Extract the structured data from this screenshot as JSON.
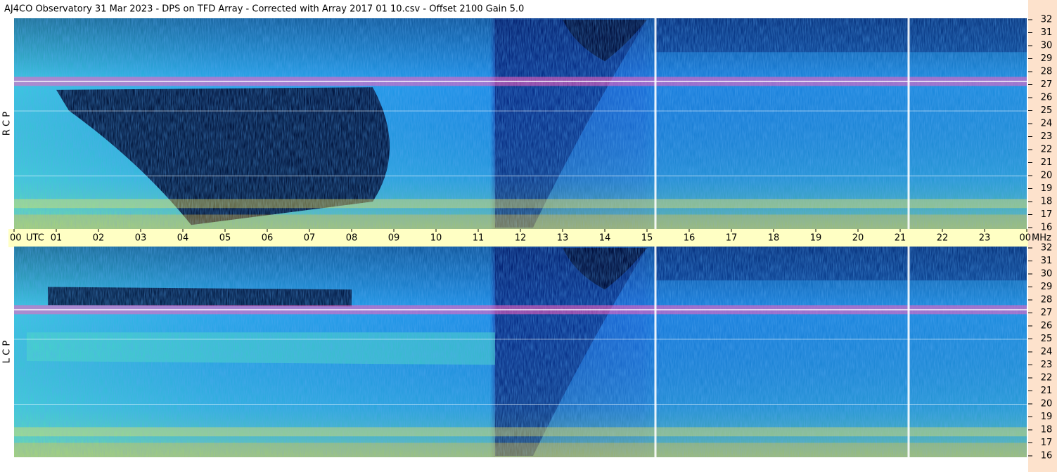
{
  "chart_data": {
    "type": "spectrogram",
    "title": "AJ4CO Observatory  31 Mar 2023  -  DPS on TFD Array  -  Corrected with Array 2017 01 10.csv  -  Offset 2100  Gain 5.0",
    "x_label": "UTC",
    "y_label": "MHz",
    "xlim": [
      0,
      24
    ],
    "xticks": [
      {
        "value": 0,
        "label": "00"
      },
      {
        "value": 1,
        "label": "01"
      },
      {
        "value": 2,
        "label": "02"
      },
      {
        "value": 3,
        "label": "03"
      },
      {
        "value": 4,
        "label": "04"
      },
      {
        "value": 5,
        "label": "05"
      },
      {
        "value": 6,
        "label": "06"
      },
      {
        "value": 7,
        "label": "07"
      },
      {
        "value": 8,
        "label": "08"
      },
      {
        "value": 9,
        "label": "09"
      },
      {
        "value": 10,
        "label": "10"
      },
      {
        "value": 11,
        "label": "11"
      },
      {
        "value": 12,
        "label": "12"
      },
      {
        "value": 13,
        "label": "13"
      },
      {
        "value": 14,
        "label": "14"
      },
      {
        "value": 15,
        "label": "15"
      },
      {
        "value": 16,
        "label": "16"
      },
      {
        "value": 17,
        "label": "17"
      },
      {
        "value": 18,
        "label": "18"
      },
      {
        "value": 19,
        "label": "19"
      },
      {
        "value": 20,
        "label": "20"
      },
      {
        "value": 21,
        "label": "21"
      },
      {
        "value": 22,
        "label": "22"
      },
      {
        "value": 23,
        "label": "23"
      },
      {
        "value": 24,
        "label": "00"
      }
    ],
    "panels": [
      {
        "name": "R C P",
        "ylim": [
          16,
          32
        ],
        "yticks": [
          16,
          17,
          18,
          19,
          20,
          21,
          22,
          23,
          24,
          25,
          26,
          27,
          28,
          29,
          30,
          31,
          32
        ]
      },
      {
        "name": "L C P",
        "ylim": [
          16,
          32
        ],
        "yticks": [
          16,
          17,
          18,
          19,
          20,
          21,
          22,
          23,
          24,
          25,
          26,
          27,
          28,
          29,
          30,
          31,
          32
        ]
      }
    ]
  }
}
